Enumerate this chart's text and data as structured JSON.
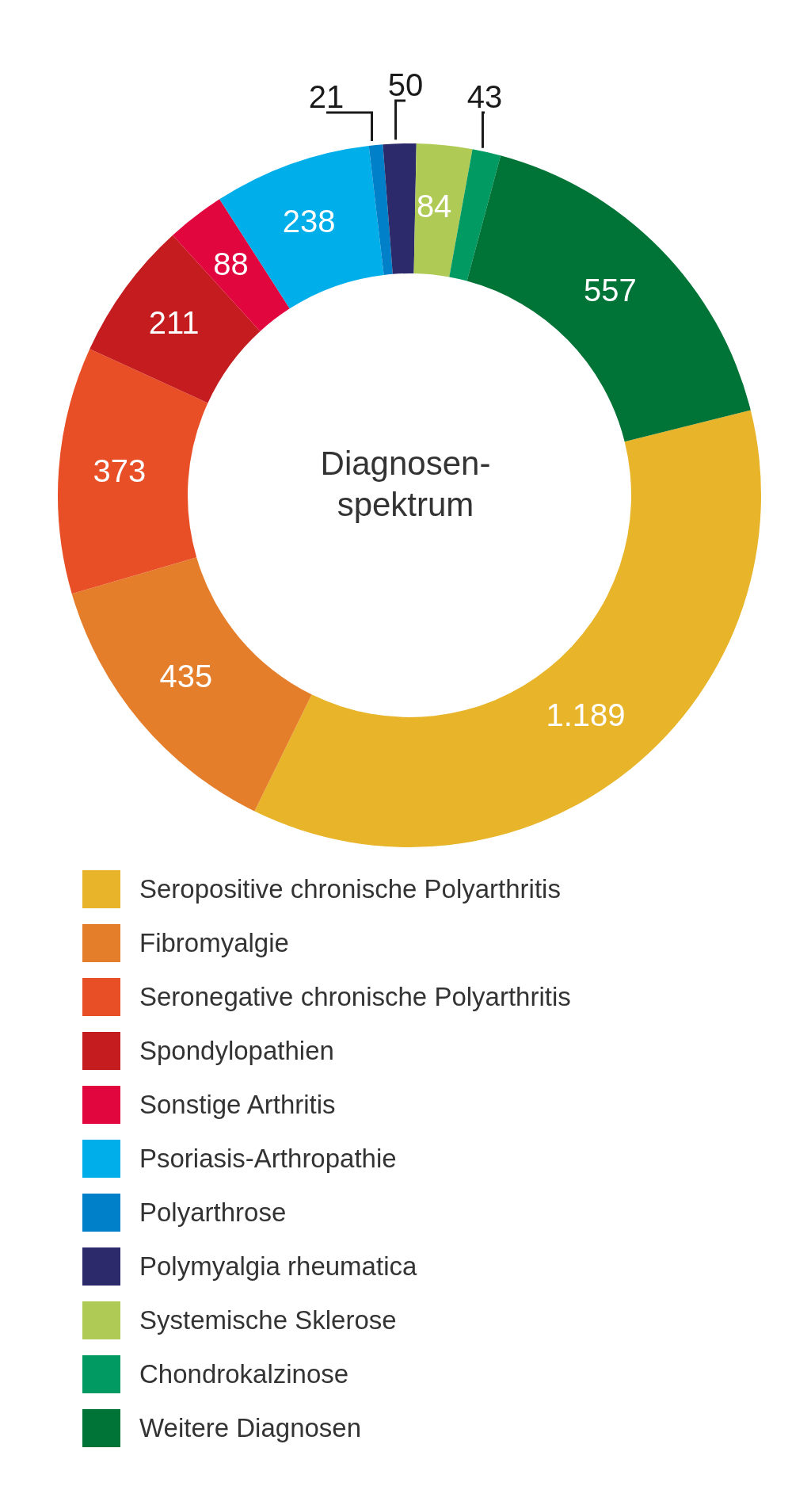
{
  "chart_data": {
    "type": "donut",
    "title": "Diagnosen-\nspektrum",
    "categories": [
      "Seropositive chronische Polyarthritis",
      "Fibromyalgie",
      "Seronegative chronische Polyarthritis",
      "Spondylopathien",
      "Sonstige Arthritis",
      "Psoriasis-Arthropathie",
      "Polyarthrose",
      "Polymyalgia rheumatica",
      "Systemische Sklerose",
      "Chondrokalzinose",
      "Weitere Diagnosen"
    ],
    "values": [
      1189,
      435,
      373,
      211,
      88,
      238,
      21,
      50,
      84,
      43,
      557
    ],
    "value_labels": [
      "1.189",
      "435",
      "373",
      "211",
      "88",
      "238",
      "21",
      "50",
      "84",
      "43",
      "557"
    ],
    "colors": [
      "#e8b42a",
      "#e57e2b",
      "#e94f26",
      "#c41c1f",
      "#e2063f",
      "#00aeea",
      "#0080c8",
      "#2c2a6a",
      "#b0cb55",
      "#009a62",
      "#007336"
    ],
    "legend": "bottom"
  }
}
